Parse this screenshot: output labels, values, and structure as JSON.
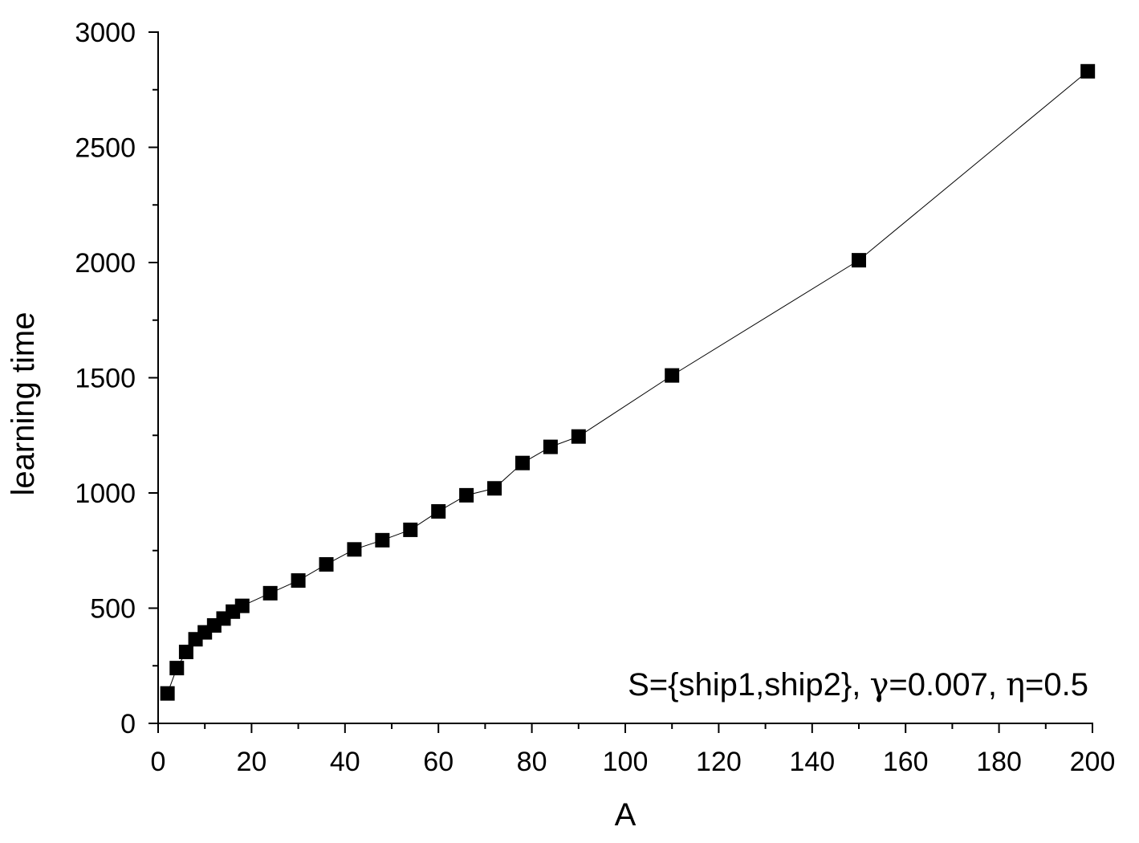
{
  "chart_data": {
    "type": "scatter",
    "title": "",
    "xlabel": "A",
    "ylabel": "learning time",
    "xlim": [
      0,
      200
    ],
    "ylim": [
      0,
      3000
    ],
    "xticks": [
      0,
      20,
      40,
      60,
      80,
      100,
      120,
      140,
      160,
      180,
      200
    ],
    "xtick_labels": [
      "0",
      "20",
      "40",
      "60",
      "80",
      "100",
      "120",
      "140",
      "160",
      "180",
      "200"
    ],
    "yticks": [
      0,
      500,
      1000,
      1500,
      2000,
      2500,
      3000
    ],
    "ytick_labels": [
      "0",
      "500",
      "1000",
      "1500",
      "2000",
      "2500",
      "3000"
    ],
    "grid": false,
    "marker": "square",
    "connected_by_line": true,
    "series": [
      {
        "x": [
          2,
          4,
          6,
          8,
          10,
          12,
          14,
          16,
          18,
          24,
          30,
          36,
          42,
          48,
          54,
          60,
          66,
          72,
          78,
          84,
          90,
          110,
          150,
          199
        ],
        "y": [
          130,
          240,
          310,
          365,
          395,
          425,
          455,
          485,
          510,
          565,
          620,
          690,
          755,
          795,
          840,
          920,
          990,
          1020,
          1130,
          1200,
          1245,
          1510,
          2010,
          2830
        ],
        "color": "#000000"
      }
    ],
    "annotation": {
      "prefix": "S={ship1,ship2}, ",
      "gamma_symbol": "γ",
      "gamma_value": "=0.007, ",
      "eta_symbol": "η",
      "eta_value": "=0.5",
      "placement": "bottom-right"
    }
  }
}
